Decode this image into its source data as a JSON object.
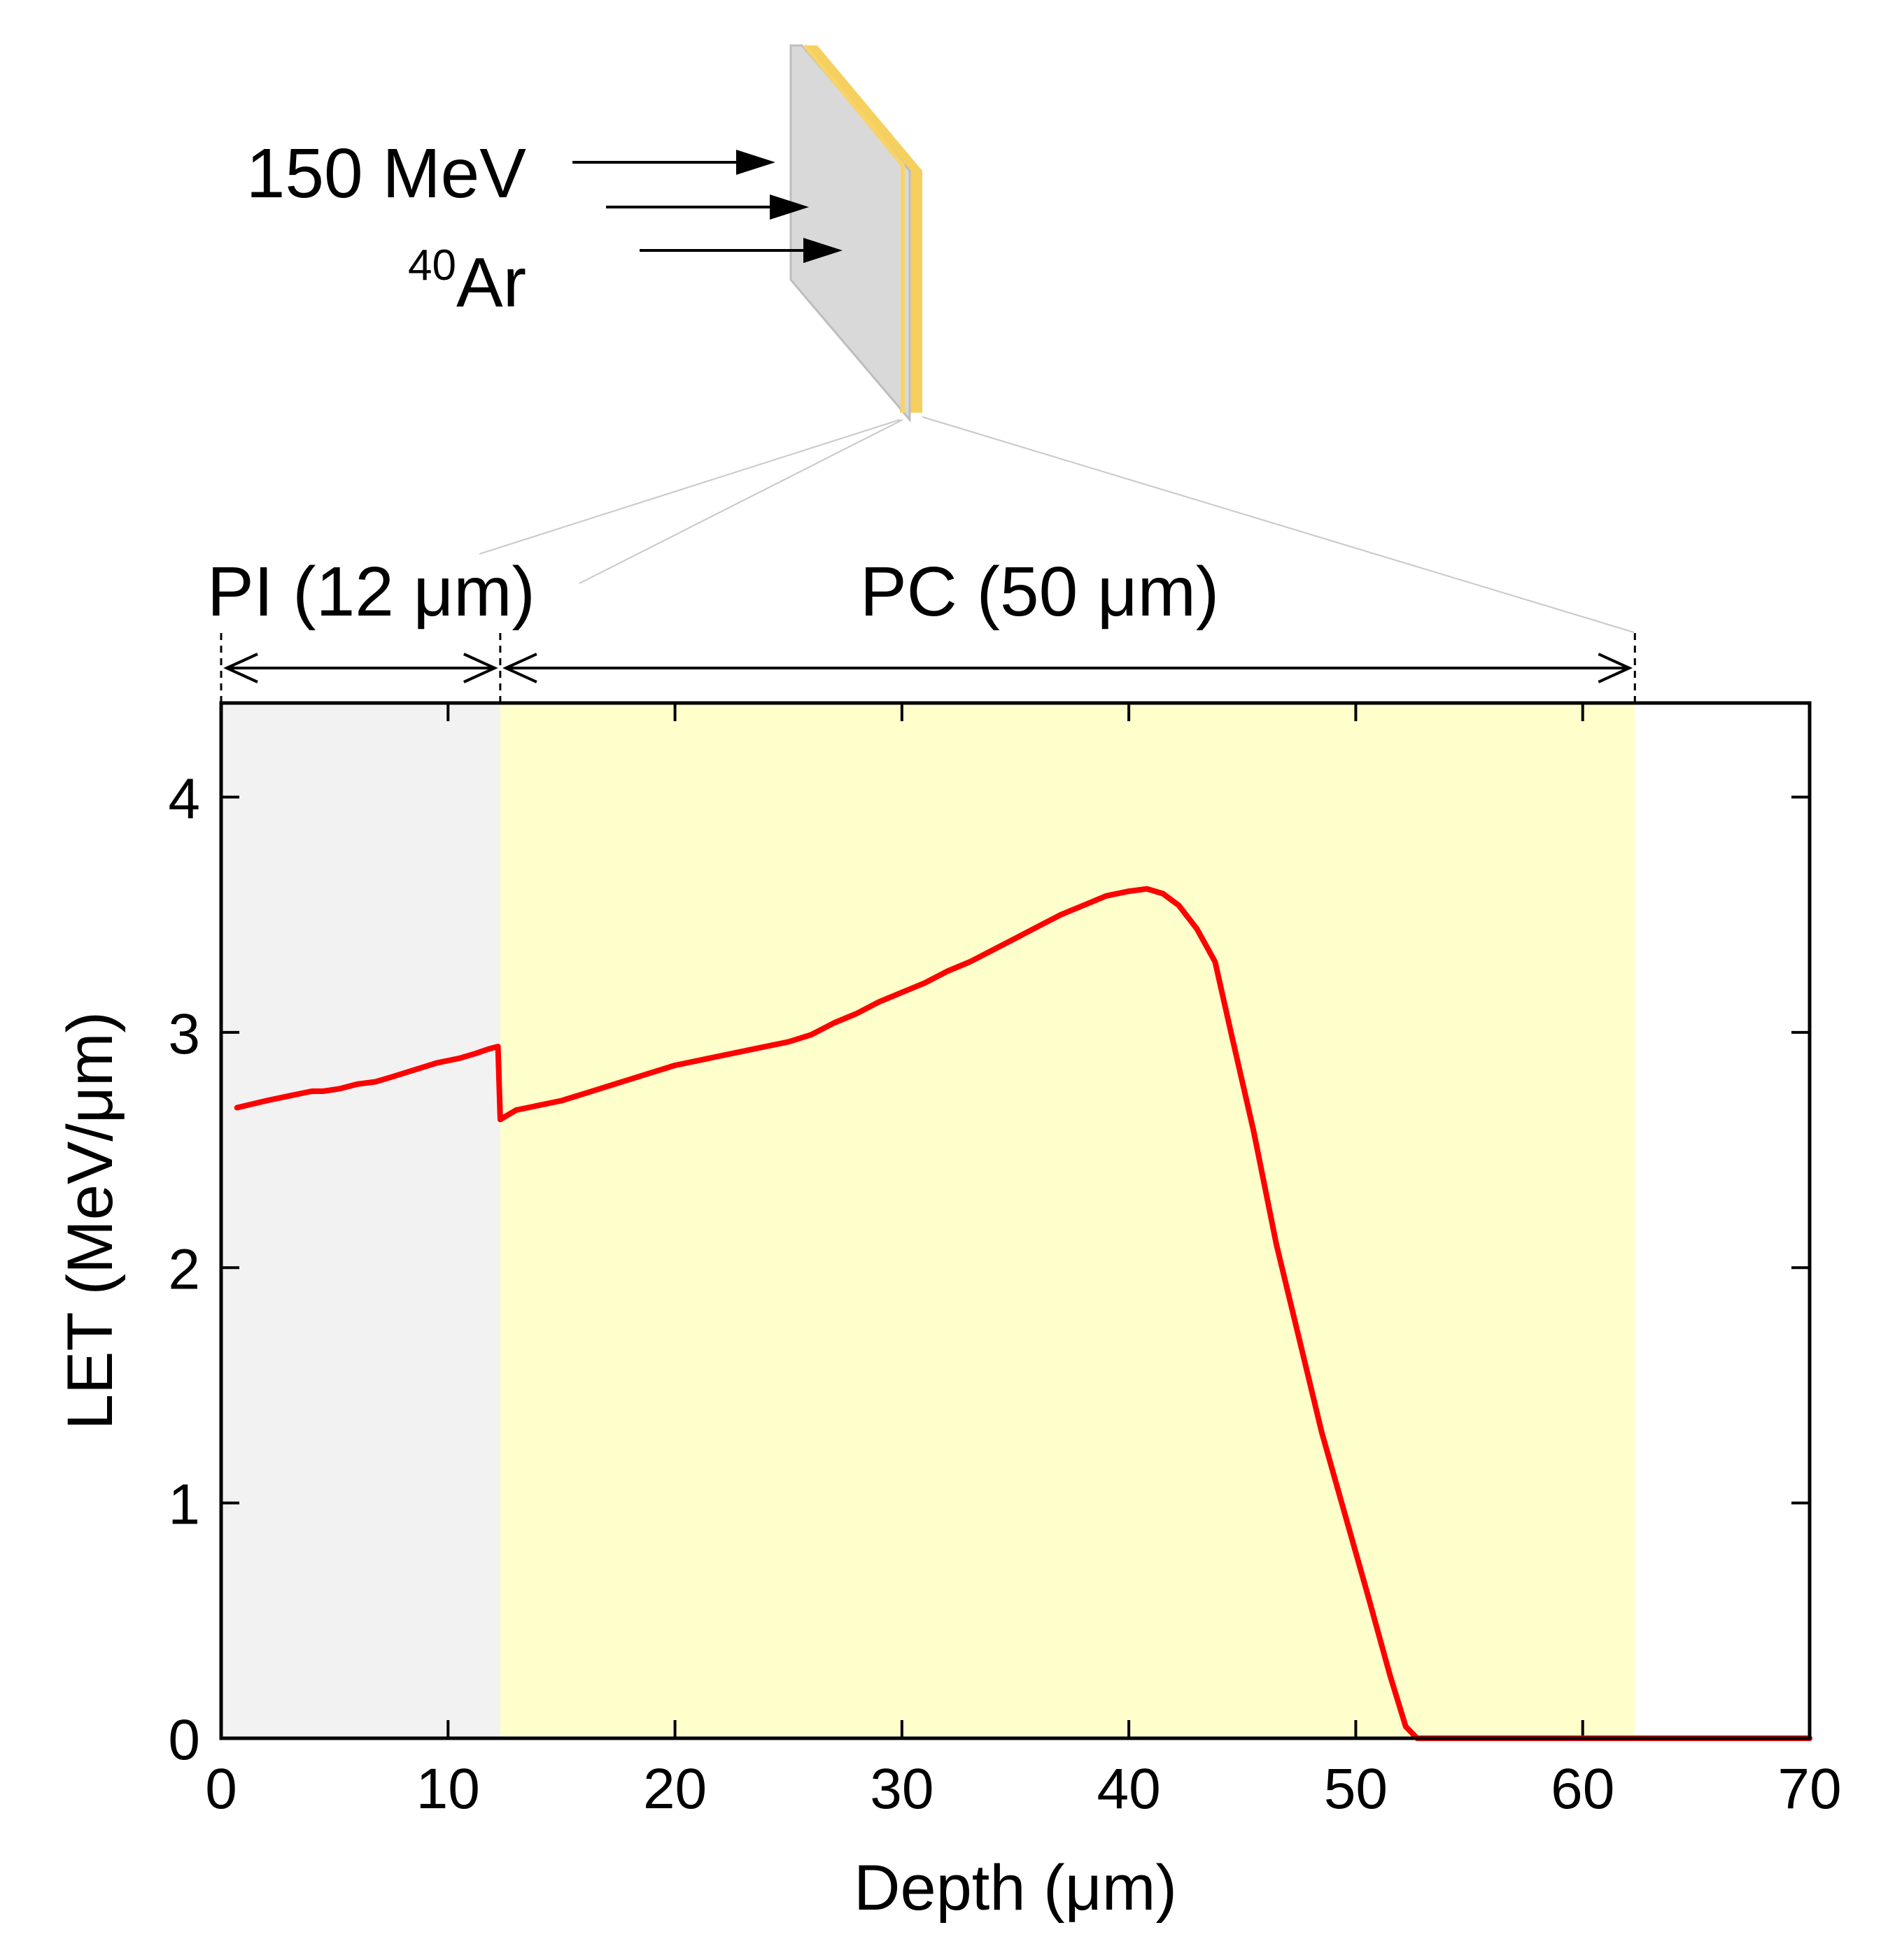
{
  "colors": {
    "pi_region": "#f2f2f2",
    "pc_region": "#ffffcc",
    "curve": "#ff0000",
    "target_face": "#d9d9d9",
    "target_edge": "#f5c842"
  },
  "beam": {
    "energy": "150 MeV",
    "ion_mass": "40",
    "ion_symbol": "Ar"
  },
  "regions": {
    "pi": {
      "label": "PI (12 μm)",
      "start": 0,
      "end": 12.3
    },
    "pc": {
      "label": "PC (50 μm)",
      "start": 12.3,
      "end": 62.3
    }
  },
  "chart_data": {
    "type": "line",
    "title": "",
    "xlabel": "Depth (μm)",
    "ylabel": "LET (MeV/μm)",
    "xlim": [
      0,
      70
    ],
    "ylim": [
      0,
      4.4
    ],
    "xticks": [
      0,
      10,
      20,
      30,
      40,
      50,
      60,
      70
    ],
    "yticks": [
      0,
      1,
      2,
      3,
      4
    ],
    "grid": false,
    "series": [
      {
        "name": "LET",
        "x": [
          0.7,
          2,
          3,
          4,
          4.5,
          5.2,
          6,
          6.8,
          7.5,
          8.5,
          9.5,
          10.5,
          11.2,
          11.8,
          12.2,
          12.3,
          13,
          14,
          15,
          16,
          17,
          18,
          19,
          20,
          21,
          22,
          23,
          24,
          25,
          26,
          27,
          28,
          29,
          30,
          31,
          32,
          33,
          34,
          35,
          36,
          37,
          38,
          39,
          40,
          40.8,
          41.5,
          42.2,
          43,
          43.8,
          44.5,
          45.5,
          46.5,
          47.5,
          48.5,
          49.5,
          50.5,
          51.5,
          52.2,
          52.7,
          53.2,
          53.7,
          55,
          60,
          65,
          70
        ],
        "y": [
          2.68,
          2.71,
          2.73,
          2.75,
          2.75,
          2.76,
          2.78,
          2.79,
          2.81,
          2.84,
          2.87,
          2.89,
          2.91,
          2.93,
          2.94,
          2.63,
          2.67,
          2.69,
          2.71,
          2.74,
          2.77,
          2.8,
          2.83,
          2.86,
          2.88,
          2.9,
          2.92,
          2.94,
          2.96,
          2.99,
          3.04,
          3.08,
          3.13,
          3.17,
          3.21,
          3.26,
          3.3,
          3.35,
          3.4,
          3.45,
          3.5,
          3.54,
          3.58,
          3.6,
          3.61,
          3.59,
          3.54,
          3.44,
          3.3,
          3.0,
          2.58,
          2.1,
          1.7,
          1.3,
          0.96,
          0.62,
          0.27,
          0.05,
          0.0,
          0.0,
          0.0,
          0.0,
          0.0,
          0.0,
          0.0
        ]
      }
    ]
  }
}
